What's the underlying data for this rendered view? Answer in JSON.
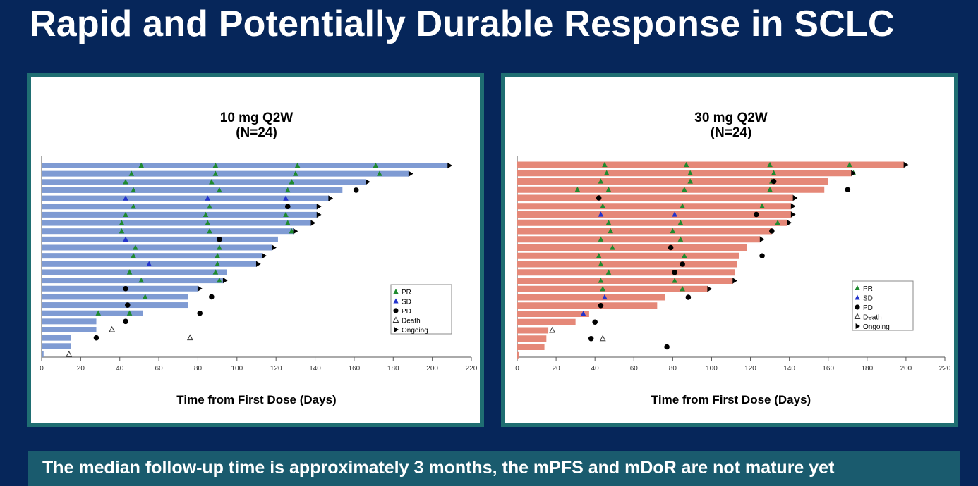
{
  "page": {
    "title": "Rapid and Potentially Durable Response in SCLC",
    "footer": "The median follow-up time is approximately 3 months, the mPFS and mDoR are not mature yet"
  },
  "colors": {
    "background": "#06265a",
    "panel_border": "#1f6e72",
    "footer_bg": "#1a5b6e",
    "pr": "#1e8a2e",
    "sd": "#2233cc",
    "pd": "#000000",
    "ongoing": "#000000"
  },
  "legend_labels": {
    "pr": "PR",
    "sd": "SD",
    "pd": "PD",
    "death": "Death",
    "ongoing": "Ongoing"
  },
  "chart_data": [
    {
      "type": "swimmer",
      "title": "10 mg Q2W",
      "subtitle": "(N=24)",
      "xlabel": "Time from First Dose (Days)",
      "xlim": [
        0,
        220
      ],
      "xticks": [
        0,
        20,
        40,
        60,
        80,
        100,
        120,
        140,
        160,
        180,
        200,
        220
      ],
      "bar_color": "#7f9bd3",
      "legend_position": "right",
      "patients": [
        {
          "end": 208,
          "pr": [
            51,
            89,
            131,
            171
          ],
          "sd": [],
          "pd": [],
          "death": [],
          "ongoing": true
        },
        {
          "end": 188,
          "pr": [
            46,
            89,
            130,
            173
          ],
          "sd": [],
          "pd": [],
          "death": [],
          "ongoing": true
        },
        {
          "end": 166,
          "pr": [
            43,
            87,
            128
          ],
          "sd": [],
          "pd": [],
          "death": [],
          "ongoing": true
        },
        {
          "end": 154,
          "pr": [
            47,
            91,
            126
          ],
          "sd": [],
          "pd": [
            161
          ],
          "death": [],
          "ongoing": false
        },
        {
          "end": 147,
          "pr": [],
          "sd": [
            43,
            85,
            125
          ],
          "pd": [],
          "death": [],
          "ongoing": true
        },
        {
          "end": 141,
          "pr": [
            47,
            86
          ],
          "sd": [],
          "pd": [
            126
          ],
          "death": [],
          "ongoing": true
        },
        {
          "end": 141,
          "pr": [
            43,
            84,
            125
          ],
          "sd": [],
          "pd": [],
          "death": [],
          "ongoing": true
        },
        {
          "end": 138,
          "pr": [
            41,
            85,
            126
          ],
          "sd": [],
          "pd": [],
          "death": [],
          "ongoing": true
        },
        {
          "end": 129,
          "pr": [
            41,
            86,
            128
          ],
          "sd": [],
          "pd": [],
          "death": [],
          "ongoing": true
        },
        {
          "end": 121,
          "pr": [],
          "sd": [
            43
          ],
          "pd": [
            91
          ],
          "death": [],
          "ongoing": false
        },
        {
          "end": 118,
          "pr": [
            48,
            91
          ],
          "sd": [],
          "pd": [],
          "death": [],
          "ongoing": true
        },
        {
          "end": 113,
          "pr": [
            47,
            90
          ],
          "sd": [],
          "pd": [],
          "death": [],
          "ongoing": true
        },
        {
          "end": 110,
          "pr": [
            90
          ],
          "sd": [
            55
          ],
          "pd": [],
          "death": [],
          "ongoing": true
        },
        {
          "end": 95,
          "pr": [
            45,
            89
          ],
          "sd": [],
          "pd": [],
          "death": [],
          "ongoing": false
        },
        {
          "end": 93,
          "pr": [
            51,
            91
          ],
          "sd": [],
          "pd": [],
          "death": [],
          "ongoing": true
        },
        {
          "end": 80,
          "pr": [],
          "sd": [],
          "pd": [
            43
          ],
          "death": [],
          "ongoing": true
        },
        {
          "end": 75,
          "pr": [
            53
          ],
          "sd": [],
          "pd": [
            87
          ],
          "death": [],
          "ongoing": false
        },
        {
          "end": 75,
          "pr": [],
          "sd": [],
          "pd": [
            44
          ],
          "death": [],
          "ongoing": false
        },
        {
          "end": 52,
          "pr": [
            29,
            45
          ],
          "sd": [],
          "pd": [
            81
          ],
          "death": [],
          "ongoing": false
        },
        {
          "end": 28,
          "pr": [],
          "sd": [],
          "pd": [
            43
          ],
          "death": [],
          "ongoing": false
        },
        {
          "end": 28,
          "pr": [],
          "sd": [],
          "pd": [],
          "death": [
            36
          ],
          "ongoing": false
        },
        {
          "end": 15,
          "pr": [],
          "sd": [],
          "pd": [
            28
          ],
          "death": [
            76
          ],
          "ongoing": false
        },
        {
          "end": 15,
          "pr": [],
          "sd": [],
          "pd": [],
          "death": [],
          "ongoing": false
        },
        {
          "end": 1,
          "pr": [],
          "sd": [],
          "pd": [],
          "death": [
            14
          ],
          "ongoing": false
        }
      ]
    },
    {
      "type": "swimmer",
      "title": "30 mg Q2W",
      "subtitle": "(N=24)",
      "xlabel": "Time from First Dose (Days)",
      "xlim": [
        0,
        220
      ],
      "xticks": [
        0,
        20,
        40,
        60,
        80,
        100,
        120,
        140,
        160,
        180,
        200,
        220
      ],
      "bar_color": "#e58878",
      "legend_position": "right",
      "patients": [
        {
          "end": 199,
          "pr": [
            45,
            87,
            130,
            171
          ],
          "sd": [],
          "pd": [],
          "death": [],
          "ongoing": true
        },
        {
          "end": 172,
          "pr": [
            46,
            89,
            132,
            173
          ],
          "sd": [],
          "pd": [],
          "death": [],
          "ongoing": true
        },
        {
          "end": 160,
          "pr": [
            43,
            89,
            131
          ],
          "sd": [],
          "pd": [
            132
          ],
          "death": [],
          "ongoing": false
        },
        {
          "end": 158,
          "pr": [
            31,
            47,
            86,
            130
          ],
          "sd": [],
          "pd": [
            170
          ],
          "death": [],
          "ongoing": false
        },
        {
          "end": 142,
          "pr": [],
          "sd": [],
          "pd": [
            42
          ],
          "death": [],
          "ongoing": true
        },
        {
          "end": 141,
          "pr": [
            44,
            85,
            126
          ],
          "sd": [],
          "pd": [],
          "death": [],
          "ongoing": true
        },
        {
          "end": 141,
          "pr": [],
          "sd": [
            43,
            81
          ],
          "pd": [
            123
          ],
          "death": [],
          "ongoing": true
        },
        {
          "end": 139,
          "pr": [
            47,
            84,
            134
          ],
          "sd": [],
          "pd": [],
          "death": [],
          "ongoing": true
        },
        {
          "end": 131,
          "pr": [
            48,
            80
          ],
          "sd": [],
          "pd": [
            131
          ],
          "death": [],
          "ongoing": false
        },
        {
          "end": 125,
          "pr": [
            43,
            84
          ],
          "sd": [],
          "pd": [],
          "death": [],
          "ongoing": true
        },
        {
          "end": 118,
          "pr": [
            49
          ],
          "sd": [],
          "pd": [
            79
          ],
          "death": [],
          "ongoing": false
        },
        {
          "end": 114,
          "pr": [
            42,
            86
          ],
          "sd": [],
          "pd": [
            126
          ],
          "death": [],
          "ongoing": false
        },
        {
          "end": 113,
          "pr": [
            43
          ],
          "sd": [],
          "pd": [
            85
          ],
          "death": [],
          "ongoing": false
        },
        {
          "end": 112,
          "pr": [
            47
          ],
          "sd": [],
          "pd": [
            81
          ],
          "death": [],
          "ongoing": false
        },
        {
          "end": 111,
          "pr": [
            43,
            81
          ],
          "sd": [],
          "pd": [],
          "death": [],
          "ongoing": true
        },
        {
          "end": 98,
          "pr": [
            44,
            85
          ],
          "sd": [],
          "pd": [],
          "death": [],
          "ongoing": true
        },
        {
          "end": 76,
          "pr": [],
          "sd": [
            45
          ],
          "pd": [
            88
          ],
          "death": [],
          "ongoing": false
        },
        {
          "end": 72,
          "pr": [],
          "sd": [],
          "pd": [
            43
          ],
          "death": [],
          "ongoing": false
        },
        {
          "end": 37,
          "pr": [],
          "sd": [
            34
          ],
          "pd": [],
          "death": [],
          "ongoing": false
        },
        {
          "end": 30,
          "pr": [],
          "sd": [],
          "pd": [
            40
          ],
          "death": [],
          "ongoing": false
        },
        {
          "end": 16,
          "pr": [],
          "sd": [],
          "pd": [],
          "death": [
            18
          ],
          "ongoing": false
        },
        {
          "end": 15,
          "pr": [],
          "sd": [],
          "pd": [
            38
          ],
          "death": [
            44
          ],
          "ongoing": false
        },
        {
          "end": 14,
          "pr": [],
          "sd": [],
          "pd": [
            77
          ],
          "death": [],
          "ongoing": false
        },
        {
          "end": 1,
          "pr": [],
          "sd": [],
          "pd": [],
          "death": [],
          "ongoing": false
        }
      ]
    }
  ]
}
